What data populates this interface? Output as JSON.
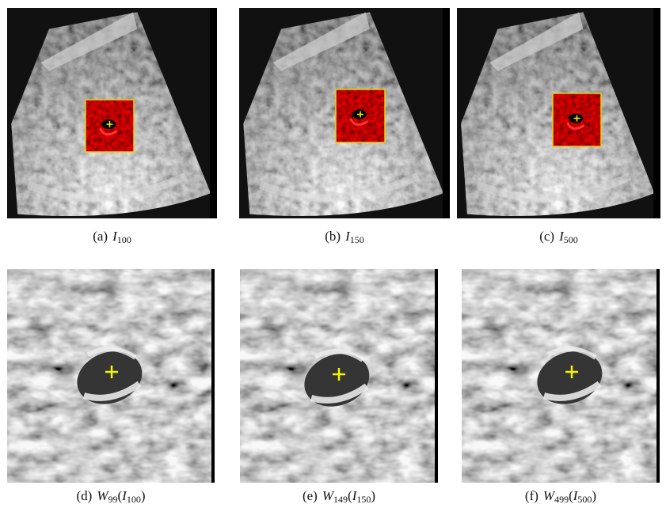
{
  "panels": [
    {
      "caption": [
        {
          "text": "(a)"
        },
        {
          "text": "I",
          "italic": true
        },
        {
          "text": "100",
          "sub": true
        }
      ]
    },
    {
      "caption": [
        {
          "text": "(b)"
        },
        {
          "text": "I",
          "italic": true
        },
        {
          "text": "150",
          "sub": true
        }
      ]
    },
    {
      "caption": [
        {
          "text": "(c)"
        },
        {
          "text": "I",
          "italic": true
        },
        {
          "text": "500",
          "sub": true
        }
      ]
    },
    {
      "caption": [
        {
          "text": "(d)"
        },
        {
          "text": "W",
          "italic": true
        },
        {
          "text": "99",
          "sub": true
        },
        {
          "text": "("
        },
        {
          "text": "I",
          "italic": true
        },
        {
          "text": "100",
          "sub": true
        },
        {
          "text": ")"
        }
      ]
    },
    {
      "caption": [
        {
          "text": "(e)"
        },
        {
          "text": "W",
          "italic": true
        },
        {
          "text": "149",
          "sub": true
        },
        {
          "text": "("
        },
        {
          "text": "I",
          "italic": true
        },
        {
          "text": "150",
          "sub": true
        },
        {
          "text": ")"
        }
      ]
    },
    {
      "caption": [
        {
          "text": "(f)"
        },
        {
          "text": "W",
          "italic": true
        },
        {
          "text": "499",
          "sub": true
        },
        {
          "text": "("
        },
        {
          "text": "I",
          "italic": true
        },
        {
          "text": "500",
          "sub": true
        },
        {
          "text": ")"
        }
      ]
    }
  ]
}
